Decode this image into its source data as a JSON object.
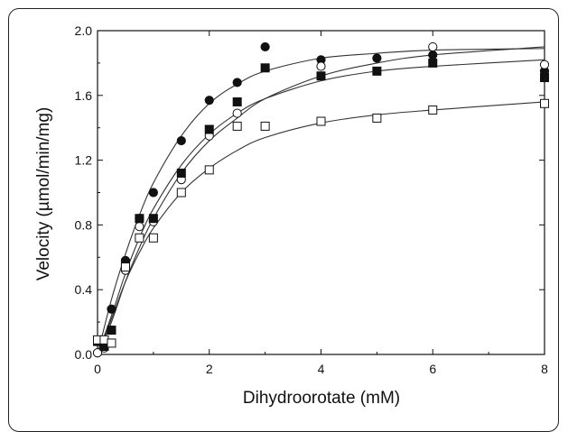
{
  "chart_data": {
    "type": "scatter",
    "title": "",
    "xlabel": "Dihydroorotate (mM)",
    "ylabel": "Velocity (µmol/min/mg)",
    "xlim": [
      0,
      8
    ],
    "ylim": [
      0,
      2.0
    ],
    "grid": false,
    "legend": "none",
    "x_ticks": [
      0,
      2,
      4,
      6,
      8
    ],
    "x_tick_labels": [
      "0",
      "2",
      "4",
      "6",
      "8"
    ],
    "y_ticks": [
      0,
      0.4,
      0.8,
      1.2,
      1.6,
      2.0
    ],
    "y_tick_labels": [
      "0.0",
      "0.4",
      "0.8",
      "1.2",
      "1.6",
      "2.0"
    ],
    "series": [
      {
        "marker": "filled-circle",
        "points": [
          [
            0.0,
            0.01
          ],
          [
            0.12,
            0.05
          ],
          [
            0.25,
            0.28
          ],
          [
            0.5,
            0.58
          ],
          [
            0.75,
            0.84
          ],
          [
            1.0,
            1.0
          ],
          [
            1.5,
            1.32
          ],
          [
            2.0,
            1.57
          ],
          [
            2.5,
            1.68
          ],
          [
            3.0,
            1.9
          ],
          [
            4.0,
            1.82
          ],
          [
            5.0,
            1.83
          ],
          [
            6.0,
            1.85
          ],
          [
            8.0,
            1.75
          ]
        ],
        "fit": [
          [
            0,
            0
          ],
          [
            0.25,
            0.34
          ],
          [
            0.5,
            0.62
          ],
          [
            0.75,
            0.86
          ],
          [
            1.0,
            1.06
          ],
          [
            1.5,
            1.35
          ],
          [
            2.0,
            1.55
          ],
          [
            2.5,
            1.67
          ],
          [
            3.0,
            1.75
          ],
          [
            4.0,
            1.83
          ],
          [
            5.0,
            1.86
          ],
          [
            6.0,
            1.88
          ],
          [
            8.0,
            1.89
          ]
        ]
      },
      {
        "marker": "open-circle",
        "points": [
          [
            0.0,
            0.01
          ],
          [
            0.12,
            0.04
          ],
          [
            0.25,
            0.15
          ],
          [
            0.5,
            0.52
          ],
          [
            0.75,
            0.79
          ],
          [
            1.0,
            0.82
          ],
          [
            1.5,
            1.08
          ],
          [
            2.0,
            1.35
          ],
          [
            2.5,
            1.49
          ],
          [
            4.0,
            1.78
          ],
          [
            6.0,
            1.9
          ],
          [
            8.0,
            1.79
          ]
        ],
        "fit": [
          [
            0,
            0
          ],
          [
            0.25,
            0.2
          ],
          [
            0.5,
            0.45
          ],
          [
            0.75,
            0.66
          ],
          [
            1.0,
            0.84
          ],
          [
            1.5,
            1.12
          ],
          [
            2.0,
            1.32
          ],
          [
            2.5,
            1.46
          ],
          [
            3.0,
            1.58
          ],
          [
            4.0,
            1.72
          ],
          [
            5.0,
            1.8
          ],
          [
            6.0,
            1.85
          ],
          [
            8.0,
            1.9
          ]
        ]
      },
      {
        "marker": "filled-square",
        "points": [
          [
            0.0,
            0.08
          ],
          [
            0.12,
            0.05
          ],
          [
            0.25,
            0.15
          ],
          [
            0.5,
            0.56
          ],
          [
            0.75,
            0.84
          ],
          [
            1.0,
            0.84
          ],
          [
            1.5,
            1.12
          ],
          [
            2.0,
            1.39
          ],
          [
            2.5,
            1.56
          ],
          [
            3.0,
            1.77
          ],
          [
            4.0,
            1.72
          ],
          [
            5.0,
            1.75
          ],
          [
            6.0,
            1.8
          ],
          [
            8.0,
            1.71
          ]
        ],
        "fit": [
          [
            0,
            0
          ],
          [
            0.25,
            0.24
          ],
          [
            0.5,
            0.5
          ],
          [
            0.75,
            0.72
          ],
          [
            1.0,
            0.9
          ],
          [
            1.5,
            1.17
          ],
          [
            2.0,
            1.36
          ],
          [
            2.5,
            1.49
          ],
          [
            3.0,
            1.58
          ],
          [
            4.0,
            1.69
          ],
          [
            5.0,
            1.75
          ],
          [
            6.0,
            1.78
          ],
          [
            8.0,
            1.82
          ]
        ]
      },
      {
        "marker": "open-square",
        "points": [
          [
            0.0,
            0.09
          ],
          [
            0.12,
            0.09
          ],
          [
            0.25,
            0.07
          ],
          [
            0.5,
            0.54
          ],
          [
            0.75,
            0.72
          ],
          [
            1.0,
            0.72
          ],
          [
            1.5,
            1.0
          ],
          [
            2.0,
            1.14
          ],
          [
            2.5,
            1.41
          ],
          [
            3.0,
            1.41
          ],
          [
            4.0,
            1.44
          ],
          [
            5.0,
            1.46
          ],
          [
            6.0,
            1.51
          ],
          [
            8.0,
            1.55
          ]
        ],
        "fit": [
          [
            0,
            0
          ],
          [
            0.25,
            0.22
          ],
          [
            0.5,
            0.45
          ],
          [
            0.75,
            0.63
          ],
          [
            1.0,
            0.78
          ],
          [
            1.5,
            1.0
          ],
          [
            2.0,
            1.15
          ],
          [
            2.5,
            1.26
          ],
          [
            3.0,
            1.34
          ],
          [
            4.0,
            1.43
          ],
          [
            5.0,
            1.48
          ],
          [
            6.0,
            1.51
          ],
          [
            8.0,
            1.56
          ]
        ]
      }
    ]
  }
}
